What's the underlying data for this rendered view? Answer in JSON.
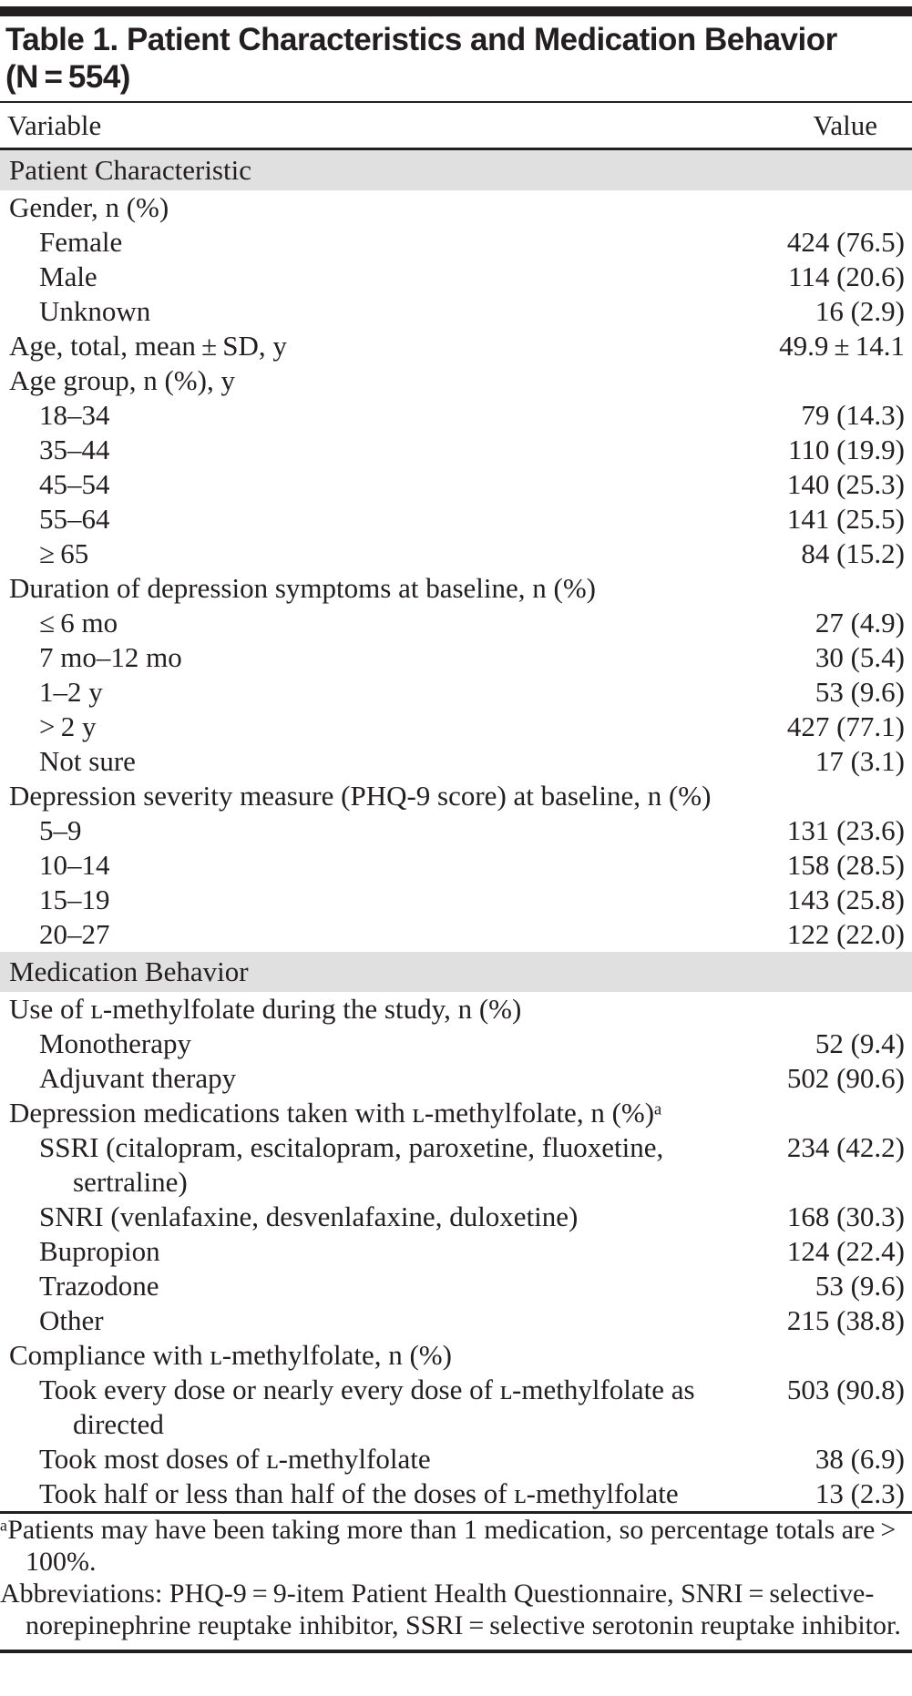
{
  "title": "Table 1. Patient Characteristics and Medication Behavior\n(N = 554)",
  "columns": {
    "variable": "Variable",
    "value": "Value"
  },
  "sections": [
    {
      "header": "Patient Characteristic",
      "rows": [
        {
          "label": "Gender, n (%)",
          "value": "",
          "indent": 0
        },
        {
          "label": "Female",
          "value": "424 (76.5)",
          "indent": 1
        },
        {
          "label": "Male",
          "value": "114 (20.6)",
          "indent": 1
        },
        {
          "label": "Unknown",
          "value": "16 (2.9)",
          "indent": 1
        },
        {
          "label": "Age, total, mean ± SD, y",
          "value": "49.9 ± 14.1",
          "indent": 0
        },
        {
          "label": "Age group, n (%), y",
          "value": "",
          "indent": 0
        },
        {
          "label": "18–34",
          "value": "79 (14.3)",
          "indent": 1
        },
        {
          "label": "35–44",
          "value": "110 (19.9)",
          "indent": 1
        },
        {
          "label": "45–54",
          "value": "140 (25.3)",
          "indent": 1
        },
        {
          "label": "55–64",
          "value": "141 (25.5)",
          "indent": 1
        },
        {
          "label": "≥ 65",
          "value": "84 (15.2)",
          "indent": 1
        },
        {
          "label": "Duration of depression symptoms at baseline, n (%)",
          "value": "",
          "indent": 0
        },
        {
          "label": "≤ 6 mo",
          "value": "27 (4.9)",
          "indent": 1
        },
        {
          "label": "7 mo–12 mo",
          "value": "30 (5.4)",
          "indent": 1
        },
        {
          "label": "1–2 y",
          "value": "53 (9.6)",
          "indent": 1
        },
        {
          "label": "> 2 y",
          "value": "427 (77.1)",
          "indent": 1
        },
        {
          "label": "Not sure",
          "value": "17 (3.1)",
          "indent": 1
        },
        {
          "label": "Depression severity measure (PHQ-9 score) at baseline, n (%)",
          "value": "",
          "indent": 0
        },
        {
          "label": "5–9",
          "value": "131 (23.6)",
          "indent": 1
        },
        {
          "label": "10–14",
          "value": "158 (28.5)",
          "indent": 1
        },
        {
          "label": "15–19",
          "value": "143 (25.8)",
          "indent": 1
        },
        {
          "label": "20–27",
          "value": "122 (22.0)",
          "indent": 1
        }
      ]
    },
    {
      "header": "Medication Behavior",
      "rows": [
        {
          "label": "Use of ʟ-methylfolate during the study, n (%)",
          "value": "",
          "indent": 0
        },
        {
          "label": "Monotherapy",
          "value": "52 (9.4)",
          "indent": 1
        },
        {
          "label": "Adjuvant therapy",
          "value": "502 (90.6)",
          "indent": 1
        },
        {
          "label": "Depression medications taken with ʟ-methylfolate, n (%)ᵃ",
          "value": "",
          "indent": 0
        },
        {
          "label": "SSRI (citalopram, escitalopram, paroxetine, fluoxetine, sertraline)",
          "value": "234 (42.2)",
          "indent": 1
        },
        {
          "label": "SNRI (venlafaxine, desvenlafaxine, duloxetine)",
          "value": "168 (30.3)",
          "indent": 1
        },
        {
          "label": "Bupropion",
          "value": "124 (22.4)",
          "indent": 1
        },
        {
          "label": "Trazodone",
          "value": "53 (9.6)",
          "indent": 1
        },
        {
          "label": "Other",
          "value": "215 (38.8)",
          "indent": 1
        },
        {
          "label": "Compliance with ʟ-methylfolate, n (%)",
          "value": "",
          "indent": 0
        },
        {
          "label": "Took every dose or nearly every dose of ʟ-methylfolate as directed",
          "value": "503 (90.8)",
          "indent": 1
        },
        {
          "label": "Took most doses of ʟ-methylfolate",
          "value": "38 (6.9)",
          "indent": 1
        },
        {
          "label": "Took half or less than half of the doses of ʟ-methylfolate",
          "value": "13 (2.3)",
          "indent": 1
        }
      ]
    }
  ],
  "footnotes": [
    "ᵃPatients may have been taking more than 1 medication, so percentage totals are > 100%.",
    "Abbreviations: PHQ-9 = 9-item Patient Health Questionnaire, SNRI = selective-norepinephrine reuptake inhibitor, SSRI = selective serotonin reuptake inhibitor."
  ],
  "colors": {
    "section_band": "#e0e0e0",
    "text": "#231f20",
    "rule": "#231f20"
  }
}
